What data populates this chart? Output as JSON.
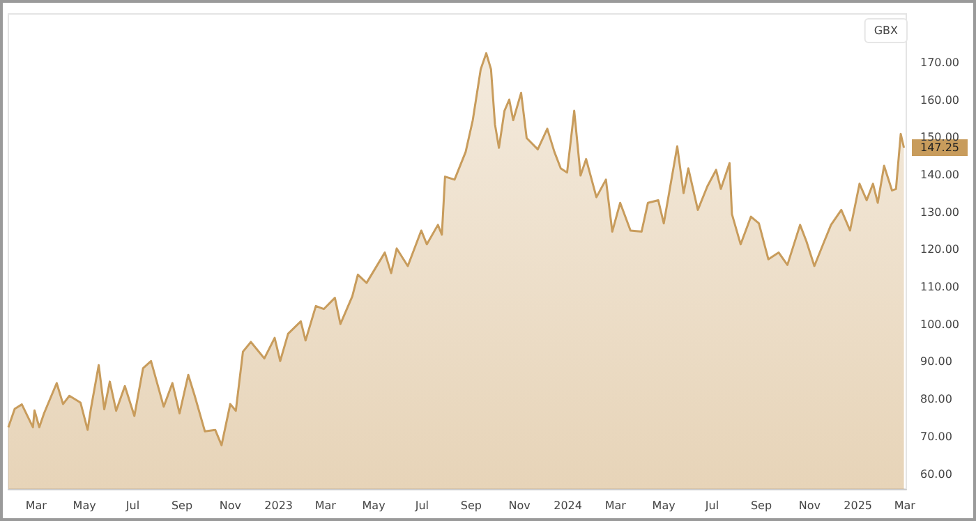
{
  "chart_data": {
    "type": "area",
    "ylabel": "GBX",
    "color": "#c89c5c",
    "marker": "none",
    "xlim": [
      "2022-01-25",
      "2025-03-03"
    ],
    "ylim": [
      56,
      183
    ],
    "yticks": [
      {
        "value": 60,
        "label": "60.00"
      },
      {
        "value": 70,
        "label": "70.00"
      },
      {
        "value": 80,
        "label": "80.00"
      },
      {
        "value": 90,
        "label": "90.00"
      },
      {
        "value": 100,
        "label": "100.00"
      },
      {
        "value": 110,
        "label": "110.00"
      },
      {
        "value": 120,
        "label": "120.00"
      },
      {
        "value": 130,
        "label": "130.00"
      },
      {
        "value": 140,
        "label": "140.00"
      },
      {
        "value": 150,
        "label": "150.00"
      },
      {
        "value": 160,
        "label": "160.00"
      },
      {
        "value": 170,
        "label": "170.00"
      }
    ],
    "xticks": [
      {
        "value": "2022-03-01",
        "label": "Mar"
      },
      {
        "value": "2022-05-01",
        "label": "May"
      },
      {
        "value": "2022-07-01",
        "label": "Jul"
      },
      {
        "value": "2022-09-01",
        "label": "Sep"
      },
      {
        "value": "2022-11-01",
        "label": "Nov"
      },
      {
        "value": "2023-01-01",
        "label": "2023"
      },
      {
        "value": "2023-03-01",
        "label": "Mar"
      },
      {
        "value": "2023-05-01",
        "label": "May"
      },
      {
        "value": "2023-07-01",
        "label": "Jul"
      },
      {
        "value": "2023-09-01",
        "label": "Sep"
      },
      {
        "value": "2023-11-01",
        "label": "Nov"
      },
      {
        "value": "2024-01-01",
        "label": "2024"
      },
      {
        "value": "2024-03-01",
        "label": "Mar"
      },
      {
        "value": "2024-05-01",
        "label": "May"
      },
      {
        "value": "2024-07-01",
        "label": "Jul"
      },
      {
        "value": "2024-09-01",
        "label": "Sep"
      },
      {
        "value": "2024-11-01",
        "label": "Nov"
      },
      {
        "value": "2025-01-01",
        "label": "2025"
      },
      {
        "value": "2025-03-01",
        "label": "Mar"
      }
    ],
    "x": [
      "2022-01-25",
      "2022-02-02",
      "2022-02-11",
      "2022-02-25",
      "2022-02-27",
      "2022-03-05",
      "2022-03-11",
      "2022-03-27",
      "2022-04-04",
      "2022-04-12",
      "2022-04-26",
      "2022-05-05",
      "2022-05-09",
      "2022-05-19",
      "2022-05-26",
      "2022-06-02",
      "2022-06-10",
      "2022-06-21",
      "2022-07-03",
      "2022-07-14",
      "2022-07-24",
      "2022-08-09",
      "2022-08-20",
      "2022-08-29",
      "2022-09-09",
      "2022-09-17",
      "2022-09-30",
      "2022-10-13",
      "2022-10-21",
      "2022-11-01",
      "2022-11-08",
      "2022-11-17",
      "2022-11-27",
      "2022-12-14",
      "2022-12-27",
      "2023-01-03",
      "2023-01-13",
      "2023-01-29",
      "2023-02-04",
      "2023-02-17",
      "2023-02-27",
      "2023-03-13",
      "2023-03-20",
      "2023-04-04",
      "2023-04-11",
      "2023-04-22",
      "2023-05-15",
      "2023-05-23",
      "2023-05-30",
      "2023-06-13",
      "2023-06-30",
      "2023-07-07",
      "2023-07-21",
      "2023-07-26",
      "2023-07-30",
      "2023-08-11",
      "2023-08-25",
      "2023-09-03",
      "2023-09-13",
      "2023-09-20",
      "2023-09-26",
      "2023-10-01",
      "2023-10-06",
      "2023-10-13",
      "2023-10-19",
      "2023-10-24",
      "2023-11-03",
      "2023-11-10",
      "2023-11-24",
      "2023-12-06",
      "2023-12-15",
      "2023-12-23",
      "2023-12-31",
      "2024-01-09",
      "2024-01-17",
      "2024-01-24",
      "2024-02-06",
      "2024-02-18",
      "2024-02-26",
      "2024-03-07",
      "2024-03-20",
      "2024-04-03",
      "2024-04-11",
      "2024-04-24",
      "2024-05-01",
      "2024-05-18",
      "2024-05-26",
      "2024-06-01",
      "2024-06-13",
      "2024-06-25",
      "2024-07-06",
      "2024-07-12",
      "2024-07-23",
      "2024-07-26",
      "2024-08-06",
      "2024-08-19",
      "2024-08-29",
      "2024-09-10",
      "2024-09-23",
      "2024-10-04",
      "2024-10-20",
      "2024-10-28",
      "2024-11-07",
      "2024-11-18",
      "2024-11-28",
      "2024-12-11",
      "2024-12-22",
      "2025-01-03",
      "2025-01-12",
      "2025-01-20",
      "2025-01-26",
      "2025-02-03",
      "2025-02-13",
      "2025-02-18",
      "2025-02-24",
      "2025-02-28"
    ],
    "values": [
      72.5,
      77.4,
      78.6,
      72.5,
      77,
      72.5,
      76.2,
      84.3,
      78.7,
      80.9,
      79.1,
      71.8,
      77.3,
      89.1,
      77.3,
      84.7,
      76.9,
      83.5,
      75.5,
      88.3,
      90.2,
      78,
      84.3,
      76.2,
      86.5,
      81,
      71.4,
      71.8,
      67.7,
      78.7,
      76.9,
      92.7,
      95.3,
      90.9,
      96.4,
      90.2,
      97.5,
      100.8,
      95.7,
      104.9,
      104.1,
      107.1,
      100.1,
      107.5,
      113.3,
      111.1,
      119.2,
      113.7,
      120.3,
      115.6,
      125.1,
      121.4,
      126.6,
      124,
      139.5,
      138.7,
      146.1,
      154.6,
      168.2,
      172.5,
      168.2,
      153.5,
      147.2,
      157.1,
      160.1,
      154.6,
      161.9,
      149.8,
      146.8,
      152.3,
      146.1,
      141.7,
      140.6,
      157.1,
      139.8,
      144.2,
      134,
      138.7,
      124.8,
      132.5,
      125.1,
      124.8,
      132.5,
      133.2,
      127,
      147.6,
      135.1,
      141.7,
      130.6,
      136.9,
      141.3,
      136.2,
      143.1,
      129.5,
      121.4,
      128.8,
      127,
      117.4,
      119.2,
      115.9,
      126.6,
      122.2,
      115.6,
      121.4,
      126.6,
      130.6,
      125.1,
      137.6,
      133.2,
      137.6,
      132.5,
      142.4,
      135.8,
      136.2,
      150.9,
      147.25
    ],
    "annotations": [
      {
        "text": "147.25",
        "x": "2025-02-28",
        "y": 147.25
      }
    ]
  }
}
